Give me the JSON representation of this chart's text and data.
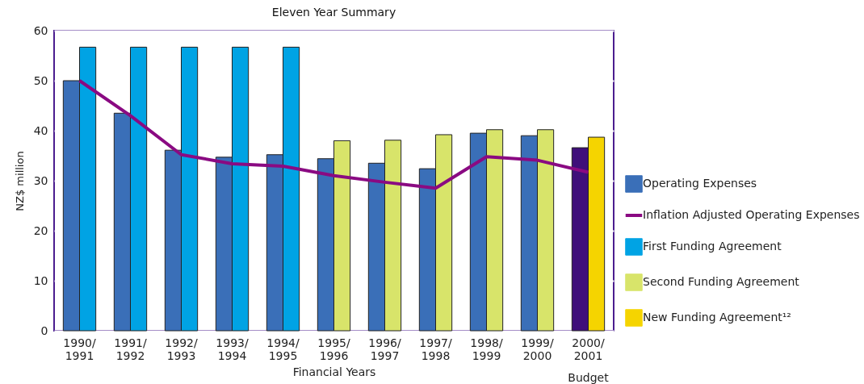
{
  "chart_data": {
    "type": "bar",
    "subtitle": "Eleven Year Summary",
    "xlabel": "Financial Years",
    "ylabel": "NZ$ million",
    "categories": [
      "1990/1991",
      "1991/1992",
      "1992/1993",
      "1993/1994",
      "1994/1995",
      "1995/1996",
      "1996/1997",
      "1997/1998",
      "1998/1999",
      "1999/2000",
      "2000/2001"
    ],
    "series": [
      {
        "name": "Operating Expenses",
        "color": "#3a6fb8",
        "colors": [
          "#3a6fb8",
          "#3a6fb8",
          "#3a6fb8",
          "#3a6fb8",
          "#3a6fb8",
          "#3a6fb8",
          "#3a6fb8",
          "#3a6fb8",
          "#3a6fb8",
          "#3a6fb8",
          "#3f0f7a"
        ],
        "values": [
          50,
          43.5,
          36.1,
          34.7,
          35.2,
          34.4,
          33.5,
          32.4,
          39.5,
          39.0,
          36.6
        ]
      },
      {
        "name": "Inflation Adjusted Operating Expenses",
        "type": "line",
        "color": "#8a0a82",
        "values": [
          50,
          43,
          35.2,
          33.4,
          32.9,
          31.0,
          29.7,
          28.5,
          34.8,
          34.1,
          31.7
        ]
      },
      {
        "name": "First Funding Agreement",
        "color": "#00a3e4",
        "values": [
          56.7,
          56.7,
          56.7,
          56.7,
          56.7,
          null,
          null,
          null,
          null,
          null,
          null
        ]
      },
      {
        "name": "Second Funding Agreement",
        "color": "#d8e46a",
        "values": [
          null,
          null,
          null,
          null,
          null,
          38.0,
          38.1,
          39.2,
          40.2,
          40.2,
          null
        ]
      },
      {
        "name": "New Funding Agreement¹²",
        "color": "#f5d400",
        "values": [
          null,
          null,
          null,
          null,
          null,
          null,
          null,
          null,
          null,
          null,
          38.7
        ]
      }
    ],
    "ylim": [
      0,
      60
    ],
    "yticks": [
      0,
      10,
      20,
      30,
      40,
      50,
      60
    ],
    "grid": "y",
    "legend": "right",
    "marker": "none",
    "line_style": "solid",
    "annotations": [
      "Budget"
    ]
  }
}
